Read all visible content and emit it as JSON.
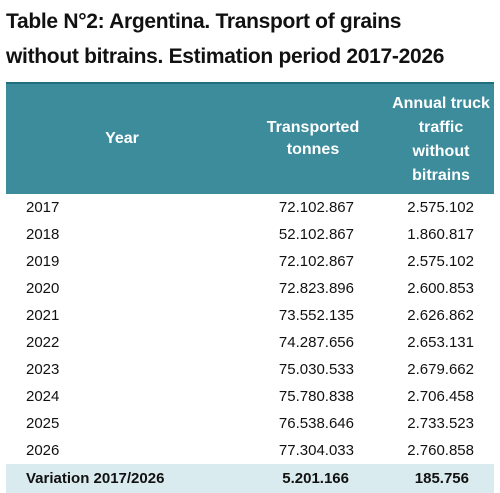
{
  "title": {
    "line1": "Table N°2: Argentina. Transport of grains",
    "line2": "without bitrains. Estimation period 2017-2026"
  },
  "table": {
    "headers": {
      "year": "Year",
      "tonnes_line1": "Transported",
      "tonnes_line2": "tonnes",
      "traffic_line1": "Annual truck",
      "traffic_line2": "traffic",
      "traffic_line3": "without",
      "traffic_line4": "bitrains"
    },
    "rows": [
      {
        "year": "2017",
        "tonnes": "72.102.867",
        "traffic": "2.575.102"
      },
      {
        "year": "2018",
        "tonnes": "52.102.867",
        "traffic": "1.860.817"
      },
      {
        "year": "2019",
        "tonnes": "72.102.867",
        "traffic": "2.575.102"
      },
      {
        "year": "2020",
        "tonnes": "72.823.896",
        "traffic": "2.600.853"
      },
      {
        "year": "2021",
        "tonnes": "73.552.135",
        "traffic": "2.626.862"
      },
      {
        "year": "2022",
        "tonnes": "74.287.656",
        "traffic": "2.653.131"
      },
      {
        "year": "2023",
        "tonnes": "75.030.533",
        "traffic": "2.679.662"
      },
      {
        "year": "2024",
        "tonnes": "75.780.838",
        "traffic": "2.706.458"
      },
      {
        "year": "2025",
        "tonnes": "76.538.646",
        "traffic": "2.733.523"
      },
      {
        "year": "2026",
        "tonnes": "77.304.033",
        "traffic": "2.760.858"
      }
    ],
    "footer": {
      "label": "Variation 2017/2026",
      "tonnes": "5.201.166",
      "traffic": "185.756"
    }
  },
  "colors": {
    "header_bg": "#3d8c9c",
    "footer_bg": "#daebef"
  }
}
